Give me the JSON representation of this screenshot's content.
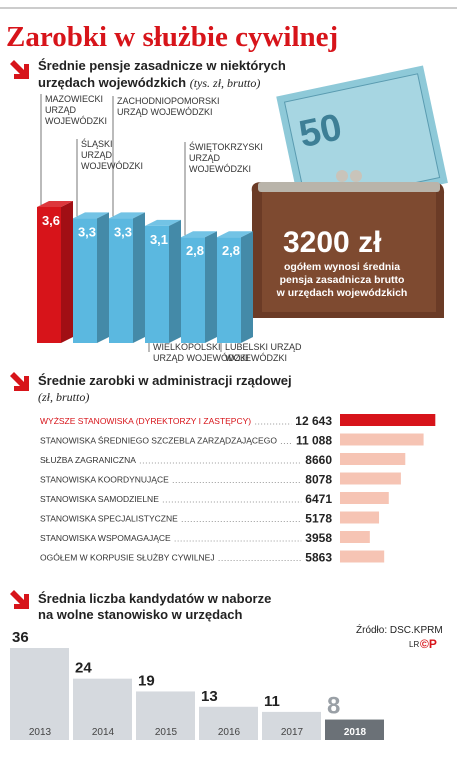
{
  "title": "Zarobki w służbie cywilnej",
  "chart_data": [
    {
      "type": "bar",
      "title": [
        "Średnie pensje zasadnicze w niektórych",
        "urzędach wojewódzkich"
      ],
      "subtitle": "(tys. zł, brutto)",
      "categories": [
        [
          "MAZOWIECKI",
          "URZĄD",
          "WOJEWÓDZKI"
        ],
        [
          "ŚLĄSKI",
          "URZĄD",
          "WOJEWÓDZKI"
        ],
        [
          "ZACHODNIOPOMORSKI",
          "URZĄD WOJEWÓDZKI"
        ],
        [
          "WIELKOPOLSKI",
          "URZĄD WOJEWÓDZKI"
        ],
        [
          "ŚWIĘTOKRZYSKI",
          "URZĄD",
          "WOJEWÓDZKI"
        ],
        [
          "LUBELSKI URZĄD",
          "WOJEWÓDZKI"
        ]
      ],
      "values": [
        3.6,
        3.3,
        3.3,
        3.1,
        2.8,
        2.8
      ],
      "value_labels": [
        "3,6",
        "3,3",
        "3,3",
        "3,1",
        "2,8",
        "2,8"
      ],
      "colors": [
        "#d7141a",
        "#5bb8e0",
        "#5bb8e0",
        "#5bb8e0",
        "#5bb8e0",
        "#5bb8e0"
      ],
      "ylim": [
        0,
        3.6
      ],
      "annotation": {
        "headline": "3200 zł",
        "lines": [
          "ogółem wynosi średnia",
          "pensja zasadnicza brutto",
          "w urzędach wojewódzkich"
        ]
      }
    },
    {
      "type": "hbar",
      "title": [
        "Średnie zarobki w administracji rządowej"
      ],
      "subtitle": "(zł, brutto)",
      "categories": [
        "WYŻSZE STANOWISKA (DYREKTORZY I ZASTĘPCY)",
        "STANOWISKA ŚREDNIEGO SZCZEBLA ZARZĄDZAJĄCEGO",
        "SŁUŻBA ZAGRANICZNA",
        "STANOWISKA KOORDYNUJĄCE",
        "STANOWISKA SAMODZIELNE",
        "STANOWISKA SPECJALISTYCZNE",
        "STANOWISKA WSPOMAGAJĄCE",
        "OGÓŁEM W KORPUSIE SŁUŻBY CYWILNEJ"
      ],
      "values": [
        12643,
        11088,
        8660,
        8078,
        6471,
        5178,
        3958,
        5863
      ],
      "value_labels": [
        "12 643",
        "11 088",
        "8660",
        "8078",
        "6471",
        "5178",
        "3958",
        "5863"
      ],
      "colors": [
        "#d7141a",
        "#f6c4b4",
        "#f6c4b4",
        "#f6c4b4",
        "#f6c4b4",
        "#f6c4b4",
        "#f6c4b4",
        "#f6c4b4"
      ],
      "xlim": [
        0,
        13000
      ]
    },
    {
      "type": "bar",
      "title": [
        "Średnia liczba kandydatów w naborze",
        "na wolne stanowisko w urzędach"
      ],
      "categories": [
        "2013",
        "2014",
        "2015",
        "2016",
        "2017",
        "2018"
      ],
      "values": [
        36,
        24,
        19,
        13,
        11,
        8
      ],
      "colors": [
        "#d5d9de",
        "#d5d9de",
        "#d5d9de",
        "#d5d9de",
        "#d5d9de",
        "#6b7177"
      ],
      "ylim": [
        0,
        36
      ]
    }
  ],
  "source": "Źródło: DSC.KPRM",
  "credit": "LR",
  "logo": "©P"
}
